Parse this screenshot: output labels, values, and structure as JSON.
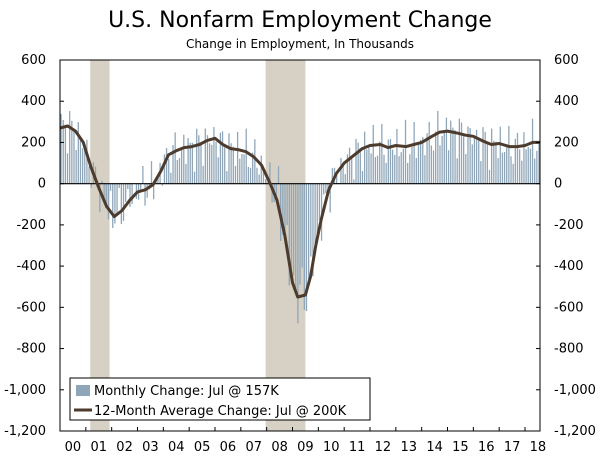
{
  "chart_data": {
    "type": "bar+line",
    "title": "U.S. Nonfarm Employment Change",
    "subtitle": "Change in Employment, In Thousands",
    "y_ticks": [
      600,
      400,
      200,
      0,
      -200,
      -400,
      -600,
      -800,
      -1000,
      -1200
    ],
    "y_tick_labels": [
      "600",
      "400",
      "200",
      "0",
      "-200",
      "-400",
      "-600",
      "-800",
      "-1,000",
      "-1,200"
    ],
    "ylim": [
      -1200,
      600
    ],
    "x_range_years": [
      2000.0,
      2018.58
    ],
    "x_ticks": [
      2000,
      2001,
      2002,
      2003,
      2004,
      2005,
      2006,
      2007,
      2008,
      2009,
      2010,
      2011,
      2012,
      2013,
      2014,
      2015,
      2016,
      2017,
      2018
    ],
    "x_tick_labels": [
      "00",
      "01",
      "02",
      "03",
      "04",
      "05",
      "06",
      "07",
      "08",
      "09",
      "10",
      "11",
      "12",
      "13",
      "14",
      "15",
      "16",
      "17",
      "18"
    ],
    "recessions": [
      {
        "start": 2001.17,
        "end": 2001.92
      },
      {
        "start": 2007.96,
        "end": 2009.5
      }
    ],
    "legend": [
      {
        "label": "Monthly Change: Jul @ 157K",
        "kind": "bar"
      },
      {
        "label": "12-Month Average Change: Jul @ 200K",
        "kind": "line"
      }
    ],
    "avg_line_points": [
      [
        2000.0,
        270
      ],
      [
        2000.3,
        280
      ],
      [
        2000.6,
        255
      ],
      [
        2000.9,
        200
      ],
      [
        2001.2,
        80
      ],
      [
        2001.5,
        -20
      ],
      [
        2001.8,
        -110
      ],
      [
        2002.1,
        -160
      ],
      [
        2002.4,
        -130
      ],
      [
        2002.7,
        -80
      ],
      [
        2003.0,
        -40
      ],
      [
        2003.3,
        -30
      ],
      [
        2003.6,
        -5
      ],
      [
        2003.9,
        60
      ],
      [
        2004.2,
        140
      ],
      [
        2004.5,
        160
      ],
      [
        2004.8,
        175
      ],
      [
        2005.1,
        180
      ],
      [
        2005.4,
        190
      ],
      [
        2005.7,
        210
      ],
      [
        2006.0,
        220
      ],
      [
        2006.3,
        190
      ],
      [
        2006.6,
        170
      ],
      [
        2006.9,
        165
      ],
      [
        2007.2,
        155
      ],
      [
        2007.5,
        130
      ],
      [
        2007.8,
        90
      ],
      [
        2008.1,
        10
      ],
      [
        2008.4,
        -80
      ],
      [
        2008.7,
        -250
      ],
      [
        2009.0,
        -480
      ],
      [
        2009.2,
        -550
      ],
      [
        2009.5,
        -540
      ],
      [
        2009.7,
        -450
      ],
      [
        2009.9,
        -300
      ],
      [
        2010.1,
        -180
      ],
      [
        2010.4,
        -30
      ],
      [
        2010.7,
        50
      ],
      [
        2011.0,
        100
      ],
      [
        2011.4,
        140
      ],
      [
        2011.7,
        170
      ],
      [
        2012.0,
        185
      ],
      [
        2012.4,
        190
      ],
      [
        2012.7,
        175
      ],
      [
        2013.0,
        185
      ],
      [
        2013.4,
        180
      ],
      [
        2013.7,
        190
      ],
      [
        2014.0,
        200
      ],
      [
        2014.4,
        230
      ],
      [
        2014.7,
        250
      ],
      [
        2015.0,
        255
      ],
      [
        2015.4,
        245
      ],
      [
        2015.7,
        235
      ],
      [
        2016.0,
        230
      ],
      [
        2016.4,
        205
      ],
      [
        2016.7,
        190
      ],
      [
        2017.0,
        195
      ],
      [
        2017.4,
        180
      ],
      [
        2017.7,
        180
      ],
      [
        2018.0,
        185
      ],
      [
        2018.3,
        200
      ],
      [
        2018.58,
        200
      ]
    ]
  }
}
